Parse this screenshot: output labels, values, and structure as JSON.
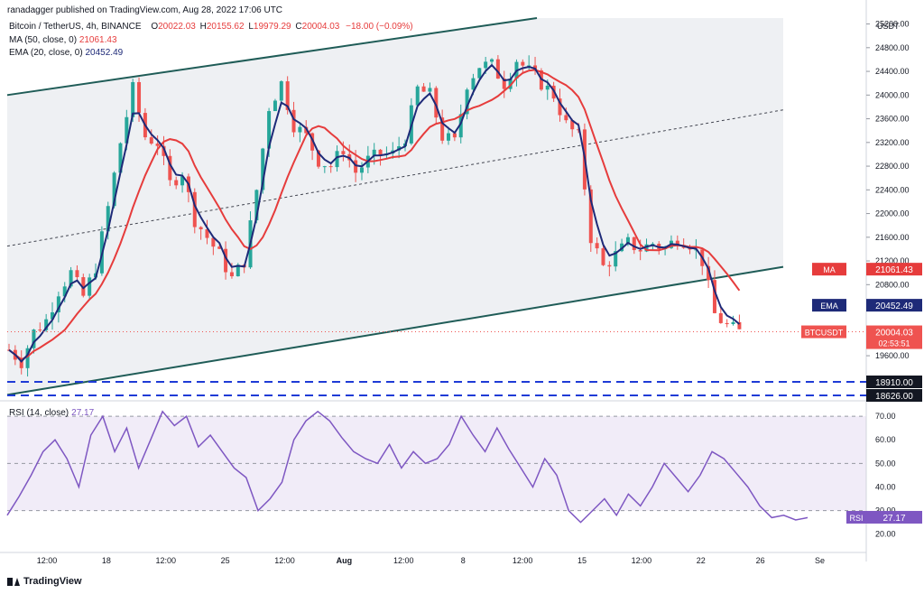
{
  "header": {
    "publisher": "ranadagger published on TradingView.com, Aug 28, 2022 17:06 UTC"
  },
  "legend": {
    "symbol": "Bitcoin / TetherUS, 4h, BINANCE",
    "o_label": "O",
    "o": "20022.03",
    "h_label": "H",
    "h": "20155.62",
    "l_label": "L",
    "l": "19979.29",
    "c_label": "C",
    "c": "20004.03",
    "change": "−18.00 (−0.09%)",
    "ma_label": "MA (50, close, 0)",
    "ma_value": "21061.43",
    "ema_label": "EMA (20, close, 0)",
    "ema_value": "20452.49"
  },
  "rsi_legend": {
    "label": "RSI (14, close)",
    "value": "27.17"
  },
  "footer": {
    "brand": "TradingView"
  },
  "colors": {
    "up": "#26a69a",
    "down": "#ef5350",
    "ma": "#e63c3c",
    "ema": "#1e2a78",
    "rsi": "#7e57c2",
    "channel": "#1f5c57",
    "support": "#1f3bd6"
  },
  "chart_data": [
    {
      "type": "candlestick",
      "currency_axis_label": "USDT",
      "y_ticks": [
        "25200.00",
        "24800.00",
        "24400.00",
        "24000.00",
        "23600.00",
        "23200.00",
        "22800.00",
        "22400.00",
        "22000.00",
        "21600.00",
        "21200.00",
        "20800.00",
        "20400.00",
        "20000.00",
        "19600.00",
        "19200.00"
      ],
      "ylim": [
        18900,
        25300
      ],
      "x_ticks": [
        "12:00",
        "18",
        "12:00",
        "25",
        "12:00",
        "Aug",
        "12:00",
        "8",
        "12:00",
        "15",
        "12:00",
        "22",
        "26",
        "Se"
      ],
      "price_path": [
        [
          0,
          19700
        ],
        [
          2,
          19500
        ],
        [
          4,
          20000
        ],
        [
          6,
          20200
        ],
        [
          8,
          20700
        ],
        [
          10,
          21000
        ],
        [
          12,
          20600
        ],
        [
          14,
          21100
        ],
        [
          16,
          22100
        ],
        [
          18,
          23200
        ],
        [
          20,
          24100
        ],
        [
          22,
          23300
        ],
        [
          24,
          23200
        ],
        [
          26,
          22500
        ],
        [
          28,
          22700
        ],
        [
          30,
          21900
        ],
        [
          32,
          21600
        ],
        [
          34,
          21300
        ],
        [
          36,
          20900
        ],
        [
          38,
          21200
        ],
        [
          40,
          22400
        ],
        [
          42,
          23800
        ],
        [
          44,
          24200
        ],
        [
          46,
          23500
        ],
        [
          48,
          23300
        ],
        [
          50,
          22900
        ],
        [
          52,
          22800
        ],
        [
          54,
          23100
        ],
        [
          56,
          22700
        ],
        [
          58,
          22900
        ],
        [
          60,
          23000
        ],
        [
          62,
          23000
        ],
        [
          64,
          23300
        ],
        [
          66,
          24100
        ],
        [
          68,
          24000
        ],
        [
          70,
          23300
        ],
        [
          72,
          23200
        ],
        [
          74,
          24200
        ],
        [
          76,
          24500
        ],
        [
          78,
          24500
        ],
        [
          80,
          24200
        ],
        [
          82,
          24600
        ],
        [
          84,
          24400
        ],
        [
          86,
          24200
        ],
        [
          88,
          24000
        ],
        [
          90,
          23500
        ],
        [
          92,
          23300
        ],
        [
          94,
          21600
        ],
        [
          96,
          21100
        ],
        [
          98,
          21300
        ],
        [
          100,
          21500
        ],
        [
          102,
          21400
        ],
        [
          104,
          21500
        ],
        [
          106,
          21400
        ],
        [
          108,
          21600
        ],
        [
          110,
          21500
        ],
        [
          112,
          21200
        ],
        [
          114,
          20300
        ],
        [
          116,
          20100
        ],
        [
          118,
          20000
        ]
      ],
      "series": [
        {
          "name": "MA (50, close, 0)",
          "last": 21061.43
        },
        {
          "name": "EMA (20, close, 0)",
          "last": 20452.49
        }
      ],
      "price_tags": [
        {
          "label": "MA",
          "value": "21061.43"
        },
        {
          "label": "EMA",
          "value": "20452.49"
        },
        {
          "label": "BTCUSDT",
          "value": "20004.03",
          "countdown": "02:53:51"
        }
      ],
      "support_levels": [
        "18910.00",
        "18626.00"
      ]
    },
    {
      "type": "line",
      "name": "RSI (14, close)",
      "y_ticks": [
        "70.00",
        "60.00",
        "50.00",
        "40.00",
        "30.00",
        "20.00"
      ],
      "ylim": [
        13,
        75
      ],
      "bands": [
        70,
        50,
        30
      ],
      "last": "27.17",
      "values": [
        28,
        36,
        45,
        55,
        60,
        52,
        40,
        62,
        70,
        55,
        65,
        48,
        60,
        72,
        66,
        70,
        57,
        62,
        55,
        48,
        44,
        30,
        35,
        42,
        60,
        68,
        72,
        68,
        61,
        55,
        52,
        50,
        58,
        48,
        55,
        50,
        52,
        58,
        70,
        62,
        55,
        65,
        56,
        48,
        40,
        52,
        45,
        30,
        25,
        30,
        35,
        28,
        37,
        32,
        40,
        50,
        44,
        38,
        45,
        55,
        52,
        46,
        40,
        32,
        27,
        28,
        26,
        27
      ]
    }
  ]
}
